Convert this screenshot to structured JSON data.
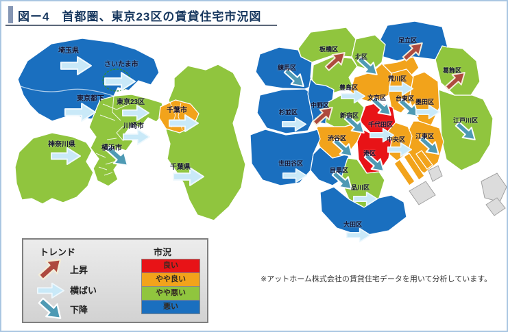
{
  "figure": {
    "title": "図ー4　首都圏、東京23区の賃貸住宅市況図",
    "note": "※アットホーム株式会社の賃貸住宅データを用いて分析しています。"
  },
  "colors": {
    "good": "#e81317",
    "somewhat_good": "#f2a31b",
    "somewhat_bad": "#90c53e",
    "bad": "#1a6fbf",
    "trend_up": "#ae4a3e",
    "trend_flat": "#c9e9f8",
    "trend_down": "#4e9ab4"
  },
  "legend": {
    "trend_header": "トレンド",
    "market_header": "市況",
    "trends": [
      {
        "label": "上昇",
        "direction": "up"
      },
      {
        "label": "横ばい",
        "direction": "flat"
      },
      {
        "label": "下降",
        "direction": "down"
      }
    ],
    "conditions": [
      {
        "label": "良い",
        "level": "good"
      },
      {
        "label": "やや良い",
        "level": "somewhat_good"
      },
      {
        "label": "やや悪い",
        "level": "somewhat_bad"
      },
      {
        "label": "悪い",
        "level": "bad"
      }
    ]
  },
  "metro_map": {
    "regions": [
      {
        "label": "埼玉県",
        "condition": "悪い",
        "trend": "横ばい"
      },
      {
        "label": "さいたま市",
        "condition": "悪い",
        "trend": "横ばい"
      },
      {
        "label": "東京都下",
        "condition": "悪い",
        "trend": "横ばい"
      },
      {
        "label": "東京23区",
        "condition": "やや悪い",
        "trend": "横ばい"
      },
      {
        "label": "千葉市",
        "condition": "やや良い",
        "trend": "横ばい"
      },
      {
        "label": "川崎市",
        "condition": "やや悪い",
        "trend": "横ばい"
      },
      {
        "label": "神奈川県",
        "condition": "やや悪い",
        "trend": "横ばい"
      },
      {
        "label": "横浜市",
        "condition": "やや悪い",
        "trend": "下降"
      },
      {
        "label": "千葉県",
        "condition": "やや悪い",
        "trend": "横ばい"
      }
    ]
  },
  "wards_map": {
    "regions": [
      {
        "label": "練馬区",
        "condition": "悪い",
        "trend": "下降"
      },
      {
        "label": "板橋区",
        "condition": "やや悪い",
        "trend": "上昇"
      },
      {
        "label": "北区",
        "condition": "やや悪い",
        "trend": "下降"
      },
      {
        "label": "足立区",
        "condition": "悪い",
        "trend": "上昇"
      },
      {
        "label": "葛飾区",
        "condition": "やや悪い",
        "trend": "上昇"
      },
      {
        "label": "荒川区",
        "condition": "やや良い",
        "trend": "横ばい"
      },
      {
        "label": "豊島区",
        "condition": "やや悪い",
        "trend": "横ばい"
      },
      {
        "label": "文京区",
        "condition": "やや良い",
        "trend": "下降"
      },
      {
        "label": "台東区",
        "condition": "やや良い",
        "trend": "下降"
      },
      {
        "label": "墨田区",
        "condition": "やや良い",
        "trend": "横ばい"
      },
      {
        "label": "江戸川区",
        "condition": "やや悪い",
        "trend": "下降"
      },
      {
        "label": "江東区",
        "condition": "やや良い",
        "trend": "下降"
      },
      {
        "label": "杉並区",
        "condition": "悪い",
        "trend": "横ばい"
      },
      {
        "label": "中野区",
        "condition": "悪い",
        "trend": "上昇"
      },
      {
        "label": "新宿区",
        "condition": "やや悪い",
        "trend": "下降"
      },
      {
        "label": "千代田区",
        "condition": "良い",
        "trend": "横ばい"
      },
      {
        "label": "中央区",
        "condition": "やや良い",
        "trend": "横ばい"
      },
      {
        "label": "渋谷区",
        "condition": "やや良い",
        "trend": "下降"
      },
      {
        "label": "港区",
        "condition": "良い",
        "trend": "下降"
      },
      {
        "label": "世田谷区",
        "condition": "悪い",
        "trend": "横ばい"
      },
      {
        "label": "目黒区",
        "condition": "悪い",
        "trend": "下降"
      },
      {
        "label": "品川区",
        "condition": "やや悪い",
        "trend": "横ばい"
      },
      {
        "label": "大田区",
        "condition": "悪い",
        "trend": "横ばい"
      }
    ]
  }
}
